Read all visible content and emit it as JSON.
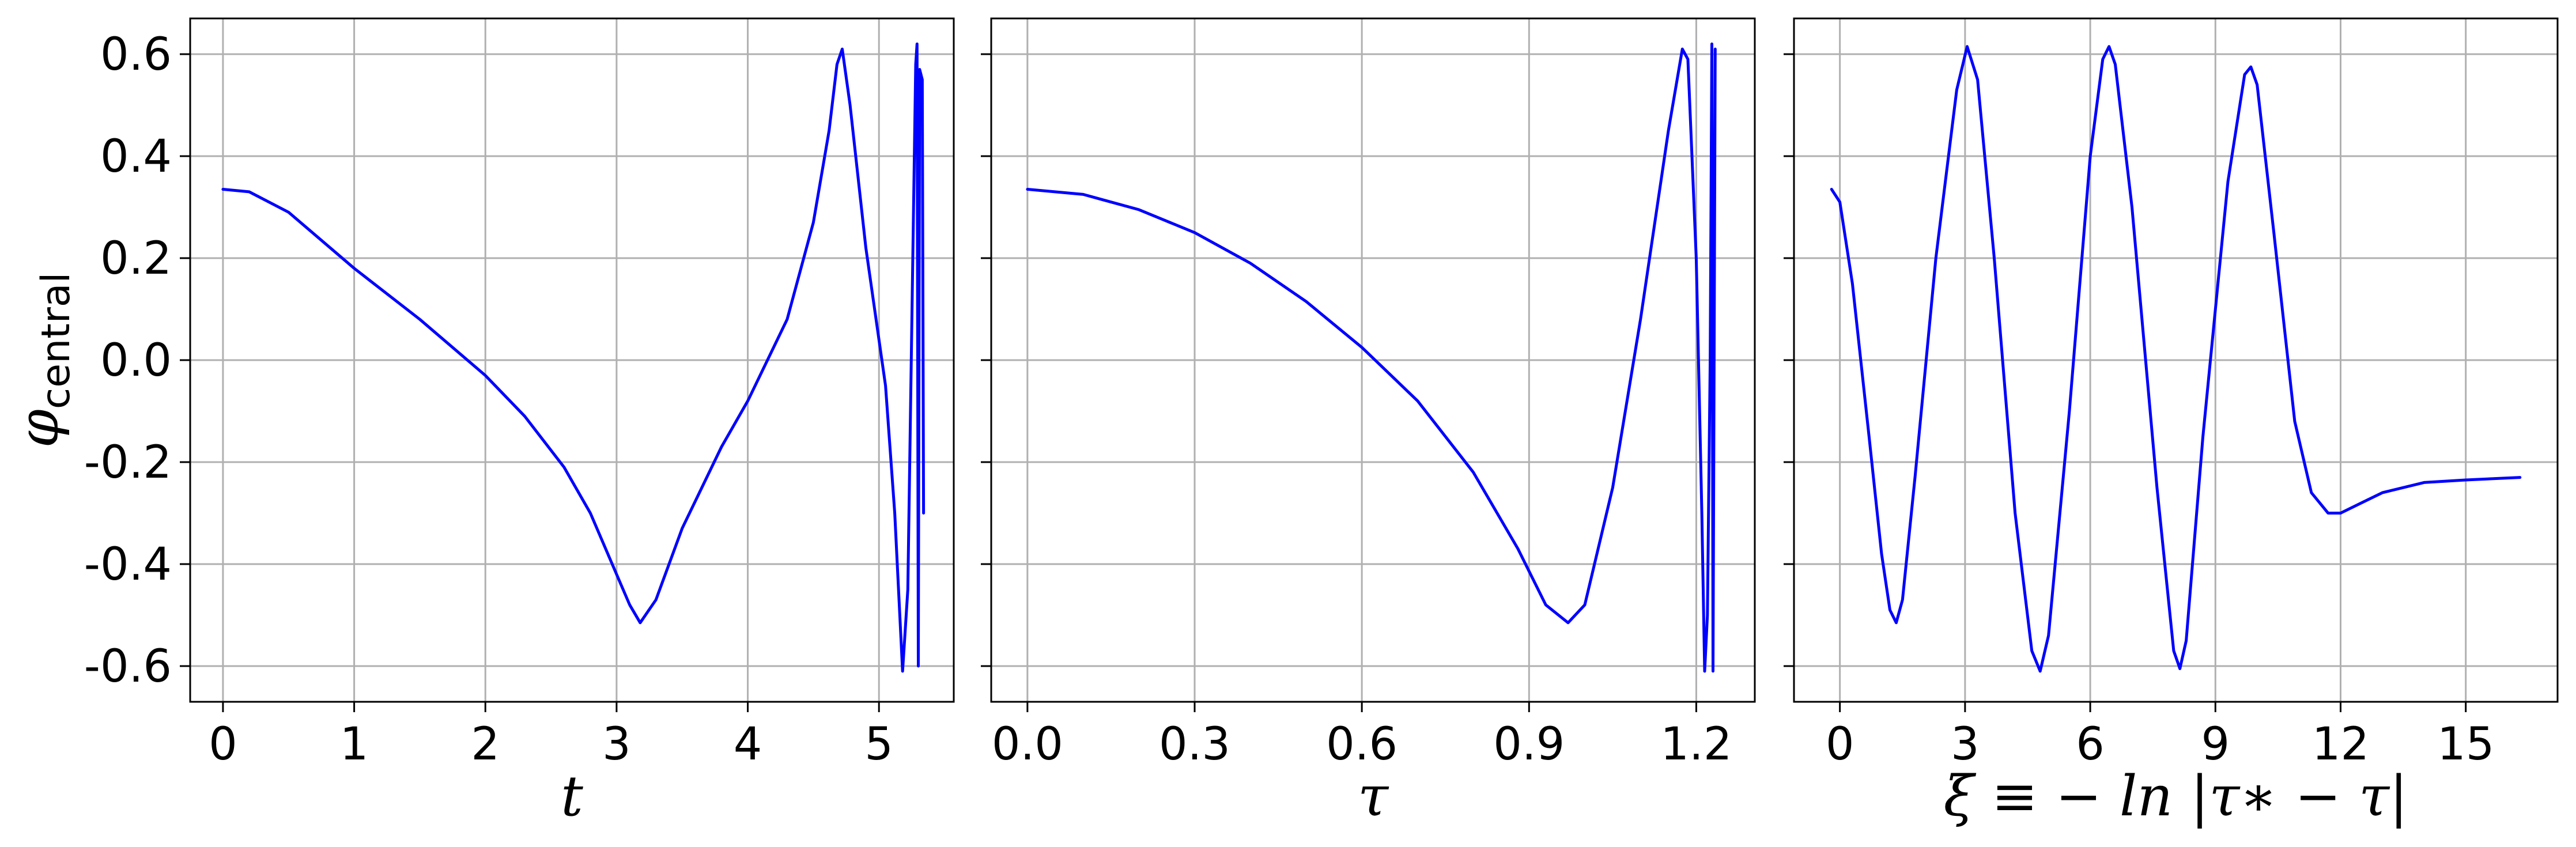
{
  "chart_data": [
    {
      "type": "line",
      "xlabel": "t",
      "ylabel": "φ",
      "ylabel_sub": "central",
      "xlim": [
        -0.25,
        5.57
      ],
      "ylim": [
        -0.67,
        0.67
      ],
      "xticks": [
        0,
        1,
        2,
        3,
        4,
        5
      ],
      "xtick_labels": [
        "0",
        "1",
        "2",
        "3",
        "4",
        "5"
      ],
      "yticks": [
        0.6,
        0.4,
        0.2,
        0.0,
        -0.2,
        -0.4,
        -0.6
      ],
      "ytick_labels": [
        "0.6",
        "0.4",
        "0.2",
        "0.0",
        "-0.2",
        "-0.4",
        "-0.6"
      ],
      "grid": true,
      "color": "#0000ff",
      "x": [
        0,
        0.2,
        0.5,
        1.0,
        1.5,
        2.0,
        2.3,
        2.6,
        2.8,
        3.0,
        3.1,
        3.18,
        3.3,
        3.5,
        3.8,
        4.0,
        4.3,
        4.5,
        4.62,
        4.68,
        4.72,
        4.78,
        4.9,
        5.05,
        5.12,
        5.18,
        5.22,
        5.28,
        5.29,
        5.3,
        5.31,
        5.33,
        5.34
      ],
      "y": [
        0.335,
        0.33,
        0.29,
        0.18,
        0.08,
        -0.03,
        -0.11,
        -0.21,
        -0.3,
        -0.42,
        -0.48,
        -0.515,
        -0.47,
        -0.33,
        -0.17,
        -0.08,
        0.08,
        0.27,
        0.45,
        0.58,
        0.61,
        0.5,
        0.22,
        -0.05,
        -0.3,
        -0.61,
        -0.45,
        0.58,
        0.62,
        -0.6,
        0.57,
        0.55,
        -0.3
      ]
    },
    {
      "type": "line",
      "xlabel": "τ",
      "xlim": [
        -0.065,
        1.305
      ],
      "ylim": [
        -0.67,
        0.67
      ],
      "xticks": [
        0.0,
        0.3,
        0.6,
        0.9,
        1.2
      ],
      "xtick_labels": [
        "0.0",
        "0.3",
        "0.6",
        "0.9",
        "1.2"
      ],
      "yticks": [
        0.6,
        0.4,
        0.2,
        0.0,
        -0.2,
        -0.4,
        -0.6
      ],
      "grid": true,
      "color": "#0000ff",
      "x": [
        0,
        0.1,
        0.2,
        0.3,
        0.4,
        0.5,
        0.6,
        0.7,
        0.8,
        0.88,
        0.93,
        0.97,
        1.0,
        1.05,
        1.1,
        1.15,
        1.175,
        1.185,
        1.2,
        1.21,
        1.215,
        1.22,
        1.225,
        1.228,
        1.23,
        1.232,
        1.234
      ],
      "y": [
        0.335,
        0.325,
        0.295,
        0.25,
        0.19,
        0.115,
        0.025,
        -0.08,
        -0.22,
        -0.37,
        -0.48,
        -0.515,
        -0.48,
        -0.25,
        0.08,
        0.45,
        0.61,
        0.59,
        0.2,
        -0.3,
        -0.61,
        -0.5,
        0.0,
        0.62,
        -0.61,
        0.0,
        0.61
      ]
    },
    {
      "type": "line",
      "xlabel": "ξ ≡ − ln |τ∗ − τ|",
      "xlim": [
        -1.1,
        17.2
      ],
      "ylim": [
        -0.67,
        0.67
      ],
      "xticks": [
        0,
        3,
        6,
        9,
        12,
        15
      ],
      "xtick_labels": [
        "0",
        "3",
        "6",
        "9",
        "12",
        "15"
      ],
      "yticks": [
        0.6,
        0.4,
        0.2,
        0.0,
        -0.2,
        -0.4,
        -0.6
      ],
      "grid": true,
      "color": "#0000ff",
      "x": [
        -0.2,
        0.0,
        0.3,
        0.7,
        1.0,
        1.2,
        1.35,
        1.5,
        1.8,
        2.3,
        2.8,
        3.05,
        3.3,
        3.7,
        4.2,
        4.6,
        4.8,
        5.0,
        5.5,
        6.0,
        6.3,
        6.45,
        6.6,
        7.0,
        7.6,
        8.0,
        8.15,
        8.3,
        8.7,
        9.3,
        9.7,
        9.85,
        10.0,
        10.4,
        10.9,
        11.3,
        11.7,
        12.0,
        12.5,
        13.0,
        14.0,
        15.0,
        16.3
      ],
      "y": [
        0.335,
        0.31,
        0.15,
        -0.15,
        -0.38,
        -0.49,
        -0.515,
        -0.47,
        -0.23,
        0.2,
        0.53,
        0.615,
        0.55,
        0.2,
        -0.3,
        -0.57,
        -0.61,
        -0.54,
        -0.1,
        0.4,
        0.59,
        0.615,
        0.58,
        0.3,
        -0.25,
        -0.57,
        -0.605,
        -0.55,
        -0.15,
        0.35,
        0.56,
        0.575,
        0.54,
        0.25,
        -0.12,
        -0.26,
        -0.3,
        -0.3,
        -0.28,
        -0.26,
        -0.24,
        -0.235,
        -0.23
      ]
    }
  ]
}
